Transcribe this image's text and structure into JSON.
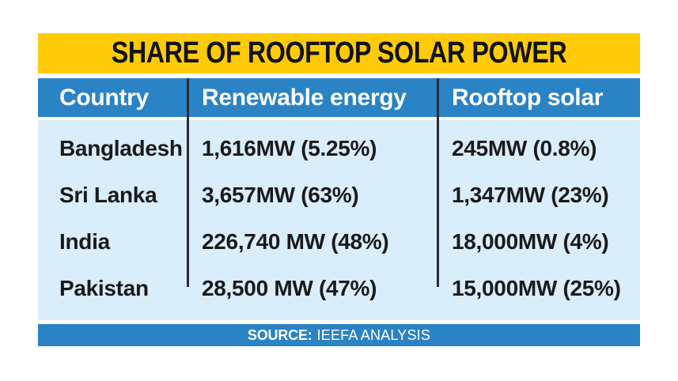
{
  "table": {
    "title": "SHARE OF ROOFTOP SOLAR POWER",
    "columns": [
      "Country",
      "Renewable energy",
      "Rooftop solar"
    ],
    "rows": [
      {
        "country": "Bangladesh",
        "renewable": "1,616MW (5.25%)",
        "rooftop": "245MW (0.8%)"
      },
      {
        "country": "Sri Lanka",
        "renewable": "3,657MW (63%)",
        "rooftop": "1,347MW (23%)"
      },
      {
        "country": "India",
        "renewable": "226,740 MW (48%)",
        "rooftop": "18,000MW (4%)"
      },
      {
        "country": "Pakistan",
        "renewable": "28,500 MW (47%)",
        "rooftop": "15,000MW (25%)"
      }
    ],
    "source_label": "SOURCE:",
    "source_text": "IEEFA ANALYSIS"
  },
  "chart_data": {
    "type": "table",
    "title": "SHARE OF ROOFTOP SOLAR POWER",
    "columns": [
      "Country",
      "Renewable energy",
      "Rooftop solar"
    ],
    "rows": [
      [
        "Bangladesh",
        "1,616MW (5.25%)",
        "245MW (0.8%)"
      ],
      [
        "Sri Lanka",
        "3,657MW (63%)",
        "1,347MW (23%)"
      ],
      [
        "India",
        "226,740 MW (48%)",
        "18,000MW (4%)"
      ],
      [
        "Pakistan",
        "28,500 MW (47%)",
        "15,000MW (25%)"
      ]
    ],
    "numeric": {
      "countries": [
        "Bangladesh",
        "Sri Lanka",
        "India",
        "Pakistan"
      ],
      "renewable_mw": [
        1616,
        3657,
        226740,
        28500
      ],
      "renewable_pct": [
        5.25,
        63,
        48,
        47
      ],
      "rooftop_mw": [
        245,
        1347,
        18000,
        15000
      ],
      "rooftop_pct": [
        0.8,
        23,
        4,
        25
      ]
    },
    "source": "SOURCE: IEEFA ANALYSIS"
  },
  "colors": {
    "page_bg": "#FFFFFF",
    "title_bg": "#FFCB08",
    "title_text": "#121212",
    "header_bg": "#2A83C5",
    "header_text": "#FFFFFF",
    "body_bg": "#DAEDFB",
    "body_text": "#1A1A1A",
    "divider": "#272C33",
    "footer_bg": "#2A83C5",
    "footer_text": "#FFFFFF"
  }
}
